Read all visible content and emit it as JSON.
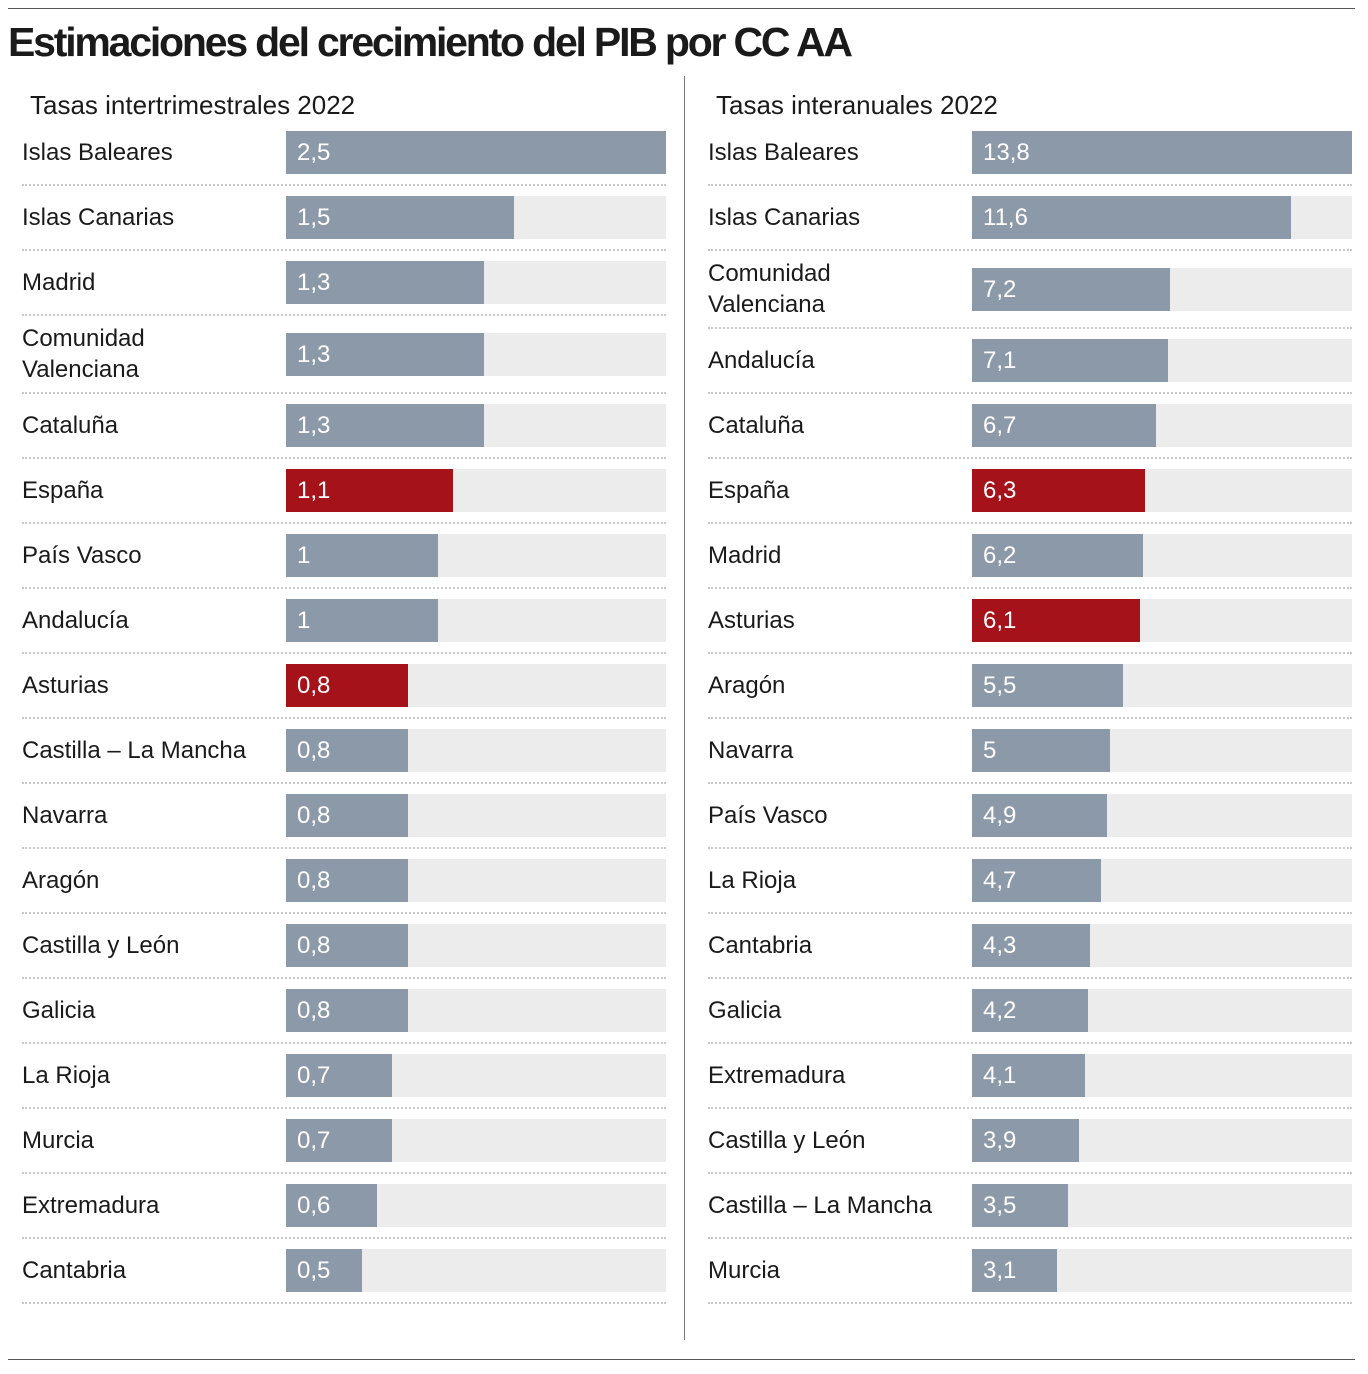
{
  "title": "Estimaciones del crecimiento del PIB por CC AA",
  "chart_data": [
    {
      "type": "bar",
      "orientation": "horizontal",
      "subtitle": "Tasas intertrimestrales 2022",
      "categories": [
        "Islas Baleares",
        "Islas Canarias",
        "Madrid",
        "Comunidad\nValenciana",
        "Cataluña",
        "España",
        "País Vasco",
        "Andalucía",
        "Asturias",
        "Castilla – La Mancha",
        "Navarra",
        "Aragón",
        "Castilla y León",
        "Galicia",
        "La Rioja",
        "Murcia",
        "Extremadura",
        "Cantabria"
      ],
      "values": [
        2.5,
        1.5,
        1.3,
        1.3,
        1.3,
        1.1,
        1,
        1,
        0.8,
        0.8,
        0.8,
        0.8,
        0.8,
        0.8,
        0.7,
        0.7,
        0.6,
        0.5
      ],
      "value_labels": [
        "2,5",
        "1,5",
        "1,3",
        "1,3",
        "1,3",
        "1,1",
        "1",
        "1",
        "0,8",
        "0,8",
        "0,8",
        "0,8",
        "0,8",
        "0,8",
        "0,7",
        "0,7",
        "0,6",
        "0,5"
      ],
      "colors": [
        "#8c99a8",
        "#8c99a8",
        "#8c99a8",
        "#8c99a8",
        "#8c99a8",
        "#a5121a",
        "#8c99a8",
        "#8c99a8",
        "#a5121a",
        "#8c99a8",
        "#8c99a8",
        "#8c99a8",
        "#8c99a8",
        "#8c99a8",
        "#8c99a8",
        "#8c99a8",
        "#8c99a8",
        "#8c99a8"
      ],
      "xlim": [
        0,
        2.5
      ]
    },
    {
      "type": "bar",
      "orientation": "horizontal",
      "subtitle": "Tasas interanuales 2022",
      "categories": [
        "Islas Baleares",
        "Islas Canarias",
        "Comunidad\nValenciana",
        "Andalucía",
        "Cataluña",
        "España",
        "Madrid",
        "Asturias",
        "Aragón",
        "Navarra",
        "País Vasco",
        "La Rioja",
        "Cantabria",
        "Galicia",
        "Extremadura",
        "Castilla y León",
        "Castilla – La Mancha",
        "Murcia"
      ],
      "values": [
        13.8,
        11.6,
        7.2,
        7.1,
        6.7,
        6.3,
        6.2,
        6.1,
        5.5,
        5,
        4.9,
        4.7,
        4.3,
        4.2,
        4.1,
        3.9,
        3.5,
        3.1
      ],
      "value_labels": [
        "13,8",
        "11,6",
        "7,2",
        "7,1",
        "6,7",
        "6,3",
        "6,2",
        "6,1",
        "5,5",
        "5",
        "4,9",
        "4,7",
        "4,3",
        "4,2",
        "4,1",
        "3,9",
        "3,5",
        "3,1"
      ],
      "colors": [
        "#8c99a8",
        "#8c99a8",
        "#8c99a8",
        "#8c99a8",
        "#8c99a8",
        "#a5121a",
        "#8c99a8",
        "#a5121a",
        "#8c99a8",
        "#8c99a8",
        "#8c99a8",
        "#8c99a8",
        "#8c99a8",
        "#8c99a8",
        "#8c99a8",
        "#8c99a8",
        "#8c99a8",
        "#8c99a8"
      ],
      "xlim": [
        0,
        13.8
      ]
    }
  ]
}
